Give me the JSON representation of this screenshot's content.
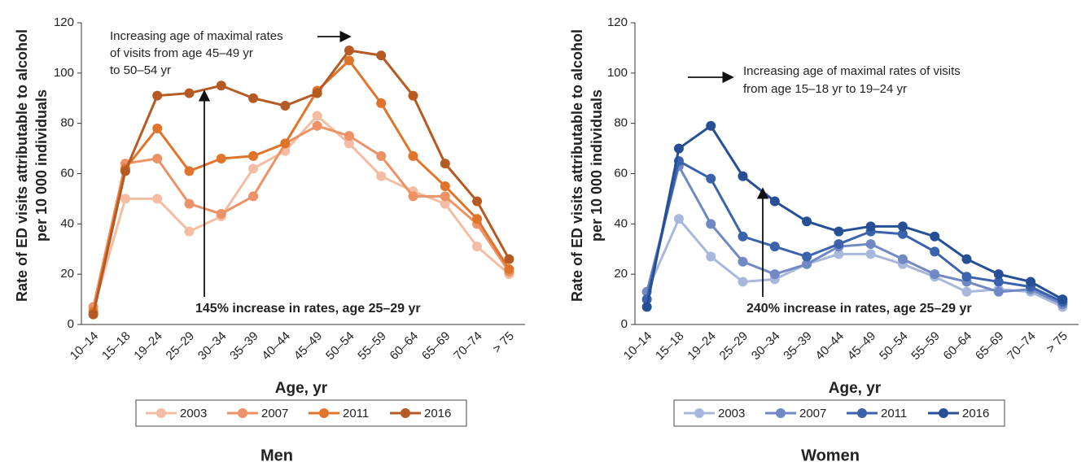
{
  "chart_data": [
    {
      "type": "line",
      "title": "Men",
      "xlabel": "Age, yr",
      "ylabel": [
        "Rate of ED visits attributable to alcohol",
        "per 10 000 individuals"
      ],
      "categories": [
        "10–14",
        "15–18",
        "19–24",
        "25–29",
        "30–34",
        "35–39",
        "40–44",
        "45–49",
        "50–54",
        "55–59",
        "60–64",
        "65–69",
        "70–74",
        "> 75"
      ],
      "series": [
        {
          "name": "2003",
          "color": "#f4bda3",
          "values": [
            6,
            50,
            50,
            37,
            43,
            62,
            69,
            83,
            72,
            59,
            53,
            48,
            31,
            20
          ]
        },
        {
          "name": "2007",
          "color": "#ec9266",
          "values": [
            7,
            64,
            66,
            48,
            44,
            51,
            72,
            79,
            75,
            67,
            51,
            51,
            40,
            21
          ]
        },
        {
          "name": "2011",
          "color": "#e0742a",
          "values": [
            5,
            62,
            78,
            61,
            66,
            67,
            72,
            93,
            105,
            88,
            67,
            55,
            42,
            22
          ]
        },
        {
          "name": "2016",
          "color": "#b65a23",
          "values": [
            4,
            61,
            91,
            92,
            95,
            90,
            87,
            92,
            109,
            107,
            91,
            64,
            49,
            26
          ]
        }
      ],
      "ylim": [
        0,
        120
      ],
      "yticks": [
        0,
        20,
        40,
        60,
        80,
        100,
        120
      ],
      "annotations": [
        [
          "Increasing age of maximal rates",
          "of visits from age 45–49 yr",
          "to 50–54 yr"
        ],
        [
          "145% increase in rates, age 25–29 yr"
        ]
      ]
    },
    {
      "type": "line",
      "title": "Women",
      "xlabel": "Age, yr",
      "ylabel": [
        "Rate of ED visits attributable to alcohol",
        "per 10 000 individuals"
      ],
      "categories": [
        "10–14",
        "15–18",
        "19–24",
        "25–29",
        "30–34",
        "35–39",
        "40–44",
        "45–49",
        "50–54",
        "55–59",
        "60–64",
        "65–69",
        "70–74",
        "> 75"
      ],
      "series": [
        {
          "name": "2003",
          "color": "#a8b8dc",
          "values": [
            13,
            42,
            27,
            17,
            18,
            24,
            28,
            28,
            24,
            19,
            13,
            14,
            13,
            7
          ]
        },
        {
          "name": "2007",
          "color": "#7089c4",
          "values": [
            13,
            63,
            40,
            25,
            20,
            24,
            31,
            32,
            26,
            20,
            17,
            13,
            14,
            8
          ]
        },
        {
          "name": "2011",
          "color": "#3a62ad",
          "values": [
            10,
            65,
            58,
            35,
            31,
            27,
            32,
            37,
            36,
            29,
            19,
            17,
            15,
            9
          ]
        },
        {
          "name": "2016",
          "color": "#264f95",
          "values": [
            7,
            70,
            79,
            59,
            49,
            41,
            37,
            39,
            39,
            35,
            26,
            20,
            17,
            10
          ]
        }
      ],
      "ylim": [
        0,
        120
      ],
      "yticks": [
        0,
        20,
        40,
        60,
        80,
        100,
        120
      ],
      "annotations": [
        [
          "Increasing age of maximal rates of visits",
          "from age 15–18 yr to 19–24 yr"
        ],
        [
          "240% increase in rates, age 25–29 yr"
        ]
      ]
    }
  ]
}
